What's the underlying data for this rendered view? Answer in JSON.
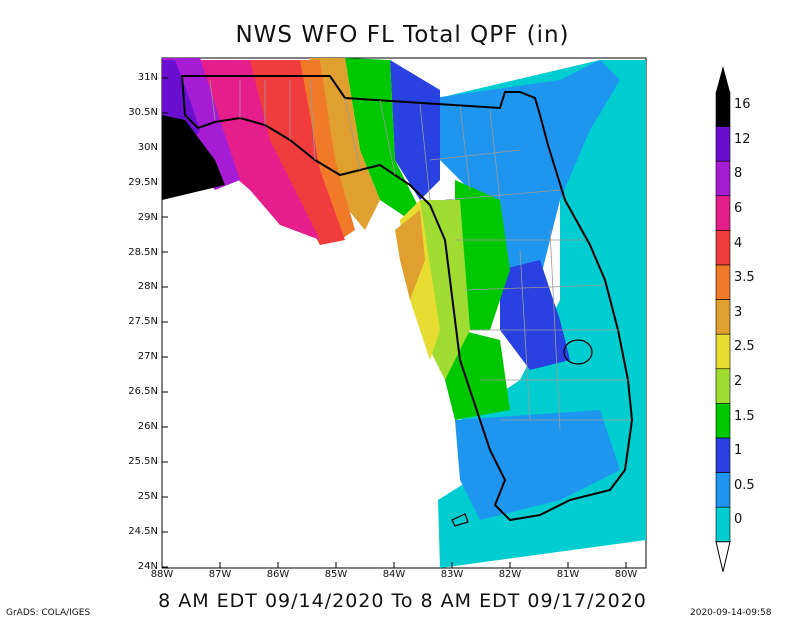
{
  "title": "NWS WFO FL Total QPF (in)",
  "subtitle": "8 AM EDT 09/14/2020 To 8 AM EDT 09/17/2020",
  "credit": "GrADS: COLA/IGES",
  "timestamp": "2020-09-14-09:58",
  "lat_labels": [
    "31N",
    "30.5N",
    "30N",
    "29.5N",
    "29N",
    "28.5N",
    "28N",
    "27.5N",
    "27N",
    "26.5N",
    "26N",
    "25.5N",
    "25N",
    "24.5N",
    "24N"
  ],
  "lon_labels": [
    "88W",
    "87W",
    "86W",
    "85W",
    "84W",
    "83W",
    "82W",
    "81W",
    "80W"
  ],
  "colorbar": {
    "labels": [
      "16",
      "12",
      "8",
      "6",
      "4",
      "3.5",
      "3",
      "2.5",
      "2",
      "1.5",
      "1",
      "0.5",
      "0"
    ],
    "colors": [
      "#000000",
      "#6a0fd0",
      "#a51cd4",
      "#e61e8c",
      "#f03c3c",
      "#f07a28",
      "#e0a030",
      "#e6dc32",
      "#a0dc32",
      "#00c800",
      "#2841e0",
      "#1e96f0",
      "#00cdd0"
    ]
  }
}
